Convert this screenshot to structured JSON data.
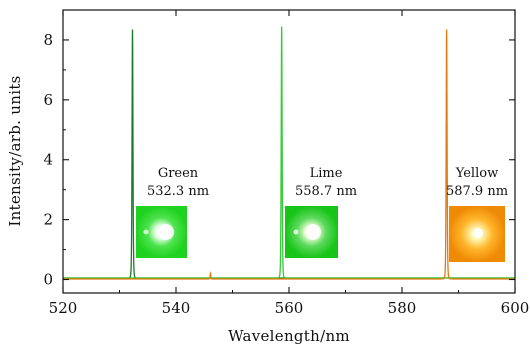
{
  "chart_data": {
    "type": "line",
    "xlabel": "Wavelength/nm",
    "ylabel": "Intensity/arb. units",
    "xlim": [
      520,
      600
    ],
    "ylim": [
      -0.45,
      9.0
    ],
    "x_ticks": [
      "520",
      "540",
      "560",
      "580",
      "600"
    ],
    "y_ticks": [
      "0",
      "2",
      "4",
      "6",
      "8"
    ],
    "grid": false,
    "series": [
      {
        "name": "Green",
        "color": "#1a7a2a",
        "peak_x": 532.3,
        "peak_y": 8.35,
        "width": 0.18,
        "baseline": 0.05
      },
      {
        "name": "Lime",
        "color": "#33cc33",
        "peak_x": 558.7,
        "peak_y": 8.45,
        "width": 0.18,
        "baseline": 0.05
      },
      {
        "name": "Yellow",
        "color": "#e07b10",
        "peak_x": 587.9,
        "peak_y": 8.35,
        "width": 0.18,
        "baseline": 0.02,
        "extra_peaks": [
          {
            "x": 546.1,
            "y": 0.18,
            "width": 0.12
          }
        ]
      }
    ],
    "annotations": [
      {
        "name": "Green",
        "wavelength_label": "532.3 nm",
        "spot_color": "#22cc22",
        "spot_center": "#ffffff",
        "bg": "#1fd21f"
      },
      {
        "name": "Lime",
        "wavelength_label": "558.7 nm",
        "spot_color": "#55e055",
        "spot_center": "#ffffff",
        "bg": "#17c417"
      },
      {
        "name": "Yellow",
        "wavelength_label": "587.9 nm",
        "spot_color": "#ffb020",
        "spot_center": "#fffbe0",
        "bg": "#f08a00"
      }
    ]
  }
}
